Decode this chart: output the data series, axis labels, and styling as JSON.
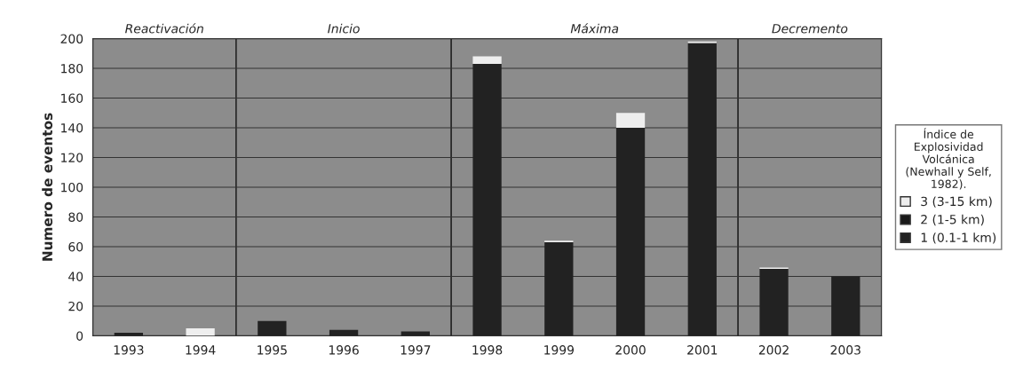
{
  "chart_data": {
    "type": "bar",
    "stacked": true,
    "ylabel": "Numero de eventos",
    "legend_title": "Índice de\nExplosividad\nVolcánica\n(Newhall y Self,\n1982).",
    "categories": [
      "1993",
      "1994",
      "1995",
      "1996",
      "1997",
      "1998",
      "1999",
      "2000",
      "2001",
      "2002",
      "2003"
    ],
    "series": [
      {
        "name": "1 (0.1-1 km)",
        "color": "#222222",
        "values": [
          2,
          null,
          10,
          4,
          3,
          183,
          63,
          140,
          197,
          45,
          40
        ]
      },
      {
        "name": "2 (1-5 km)",
        "color": "#1a1a1a",
        "values": [
          0,
          0,
          0,
          0,
          0,
          0,
          0,
          0,
          0,
          0,
          0
        ]
      },
      {
        "name": "3 (3-15 km)",
        "color": "#eeeeee",
        "values": [
          0,
          5,
          0,
          0,
          0,
          5,
          1,
          10,
          1,
          1,
          0
        ]
      }
    ],
    "bands": [
      {
        "axis": "x",
        "from": "1993",
        "to": "1994",
        "label": "Reactivación"
      },
      {
        "axis": "x",
        "from": "1995",
        "to": "1997",
        "label": "Inicio"
      },
      {
        "axis": "x",
        "from": "1998",
        "to": "2001",
        "label": "Máxima"
      },
      {
        "axis": "x",
        "from": "2002",
        "to": "2003",
        "label": "Decremento"
      }
    ],
    "ylim": [
      0,
      200
    ],
    "yticks": [
      0,
      20,
      40,
      60,
      80,
      100,
      120,
      140,
      160,
      180,
      200
    ],
    "grid": "y",
    "legend": "right"
  }
}
